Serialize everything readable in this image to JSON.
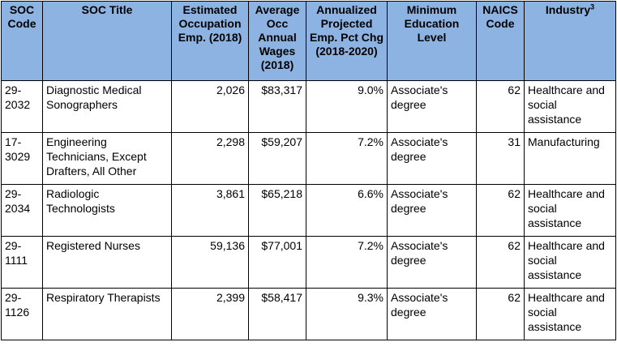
{
  "colors": {
    "header_bg": "#8db3e2",
    "border": "#000000",
    "text": "#000000"
  },
  "columns": [
    "SOC Code",
    "SOC Title",
    "Estimated Occupation Emp. (2018)",
    "Average Occ Annual Wages (2018)",
    "Annualized Projected Emp. Pct Chg (2018-2020)",
    "Minimum Education Level",
    "NAICS Code",
    "Industry"
  ],
  "industry_footnote": "3",
  "rows": [
    {
      "soc_code": "29-2032",
      "soc_title": "Diagnostic Medical Sonographers",
      "emp": "2,026",
      "wage": "$83,317",
      "pct": "9.0%",
      "edu": "Associate's degree",
      "naics": "62",
      "industry": "Healthcare and social assistance"
    },
    {
      "soc_code": "17-3029",
      "soc_title": "Engineering Technicians, Except Drafters, All Other",
      "emp": "2,298",
      "wage": "$59,207",
      "pct": "7.2%",
      "edu": "Associate's degree",
      "naics": "31",
      "industry": "Manufacturing"
    },
    {
      "soc_code": "29-2034",
      "soc_title": "Radiologic Technologists",
      "emp": "3,861",
      "wage": "$65,218",
      "pct": "6.6%",
      "edu": "Associate's degree",
      "naics": "62",
      "industry": "Healthcare and social assistance"
    },
    {
      "soc_code": "29-1111",
      "soc_title": "Registered Nurses",
      "emp": "59,136",
      "wage": "$77,001",
      "pct": "7.2%",
      "edu": "Associate's degree",
      "naics": "62",
      "industry": "Healthcare and social assistance"
    },
    {
      "soc_code": "29-1126",
      "soc_title": "Respiratory Therapists",
      "emp": "2,399",
      "wage": "$58,417",
      "pct": "9.3%",
      "edu": "Associate's degree",
      "naics": "62",
      "industry": "Healthcare and social assistance"
    }
  ]
}
